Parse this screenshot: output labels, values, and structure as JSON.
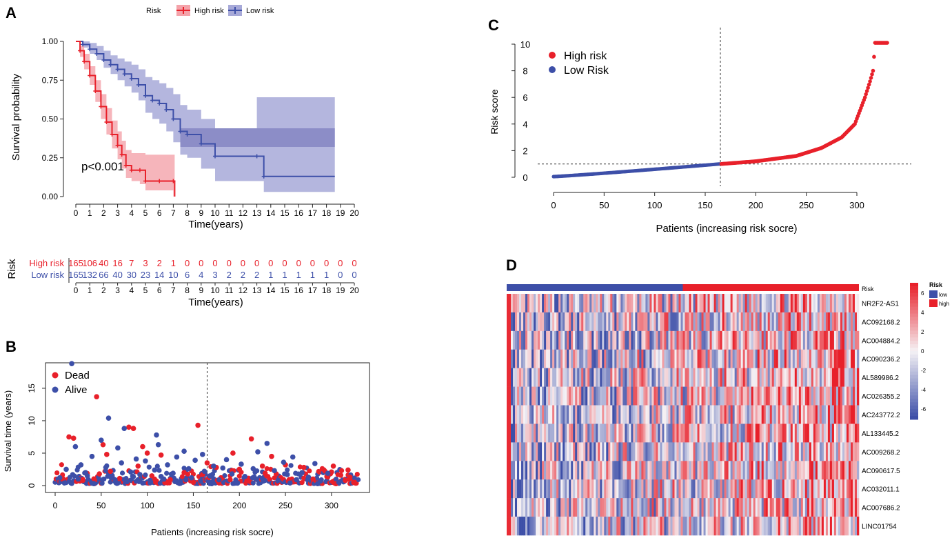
{
  "panels": {
    "a_label": "A",
    "b_label": "B",
    "c_label": "C",
    "d_label": "D"
  },
  "colors": {
    "high": "#e8202a",
    "low": "#3d4fa8",
    "high_band": "#f4a3aa",
    "low_band": "#a7a9d8",
    "overlap_band": "#7b7cbe"
  },
  "chart_data": [
    {
      "id": "A-km",
      "type": "line",
      "title": "",
      "legend_title": "Risk",
      "legend": [
        "High risk",
        "Low risk"
      ],
      "legend_position": "top",
      "xlabel": "Time(years)",
      "ylabel": "Survival probability",
      "xlim": [
        0,
        20
      ],
      "ylim": [
        0,
        1
      ],
      "x_ticks": [
        0,
        1,
        2,
        3,
        4,
        5,
        6,
        7,
        8,
        9,
        10,
        11,
        12,
        13,
        14,
        15,
        16,
        17,
        18,
        19,
        20
      ],
      "y_ticks": [
        "0.00",
        "0.25",
        "0.50",
        "0.75",
        "1.00"
      ],
      "annotation": "p<0.001",
      "series": [
        {
          "name": "High risk",
          "x": [
            0,
            0.3,
            0.6,
            1,
            1.4,
            1.8,
            2.2,
            2.6,
            3,
            3.3,
            3.6,
            4,
            4.6,
            5,
            6,
            7,
            7.1
          ],
          "y": [
            1,
            0.94,
            0.87,
            0.78,
            0.68,
            0.58,
            0.48,
            0.4,
            0.33,
            0.27,
            0.2,
            0.17,
            0.17,
            0.1,
            0.1,
            0.1,
            0
          ],
          "ci_low": [
            1,
            0.9,
            0.82,
            0.72,
            0.61,
            0.5,
            0.4,
            0.31,
            0.24,
            0.18,
            0.12,
            0.1,
            0.08,
            0.04,
            0.04,
            0,
            0
          ],
          "ci_high": [
            1,
            0.97,
            0.92,
            0.84,
            0.75,
            0.66,
            0.57,
            0.49,
            0.42,
            0.36,
            0.3,
            0.28,
            0.28,
            0.27,
            0.27,
            0.27,
            0
          ]
        },
        {
          "name": "Low risk",
          "x": [
            0,
            0.5,
            1,
            1.5,
            2,
            2.5,
            3,
            3.5,
            4,
            4.5,
            5,
            5.5,
            6,
            6.5,
            7,
            7.5,
            8,
            9,
            10,
            13,
            13.5,
            18.6
          ],
          "y": [
            1,
            0.98,
            0.95,
            0.92,
            0.88,
            0.85,
            0.82,
            0.79,
            0.76,
            0.72,
            0.65,
            0.62,
            0.6,
            0.56,
            0.5,
            0.42,
            0.4,
            0.34,
            0.26,
            0.26,
            0.13,
            0.13
          ],
          "ci_low": [
            1,
            0.96,
            0.92,
            0.88,
            0.83,
            0.79,
            0.75,
            0.71,
            0.67,
            0.62,
            0.54,
            0.5,
            0.47,
            0.42,
            0.35,
            0.27,
            0.25,
            0.18,
            0.1,
            0.1,
            0.03,
            0.03
          ],
          "ci_high": [
            1,
            1,
            0.99,
            0.97,
            0.94,
            0.91,
            0.89,
            0.87,
            0.85,
            0.82,
            0.77,
            0.75,
            0.73,
            0.7,
            0.66,
            0.59,
            0.56,
            0.5,
            0.44,
            0.64,
            0.64,
            0.64
          ]
        }
      ]
    },
    {
      "id": "A-risk-table",
      "type": "table",
      "ylabel": "Risk",
      "xlabel": "Time(years)",
      "x_ticks": [
        0,
        1,
        2,
        3,
        4,
        5,
        6,
        7,
        8,
        9,
        10,
        11,
        12,
        13,
        14,
        15,
        16,
        17,
        18,
        19,
        20
      ],
      "rows": [
        {
          "label": "High risk",
          "values": [
            165,
            106,
            40,
            16,
            7,
            3,
            2,
            1,
            0,
            0,
            0,
            0,
            0,
            0,
            0,
            0,
            0,
            0,
            0,
            0,
            0
          ]
        },
        {
          "label": "Low risk",
          "values": [
            165,
            132,
            66,
            40,
            30,
            23,
            14,
            10,
            6,
            4,
            3,
            2,
            2,
            2,
            1,
            1,
            1,
            1,
            1,
            0,
            0
          ]
        }
      ]
    },
    {
      "id": "B-survival-status",
      "type": "scatter",
      "xlabel": "Patients (increasing risk socre)",
      "ylabel": "Survival time (years)",
      "xlim": [
        0,
        330
      ],
      "ylim": [
        0,
        18.5
      ],
      "x_ticks": [
        0,
        50,
        100,
        150,
        200,
        250,
        300
      ],
      "y_ticks": [
        0,
        5,
        10,
        15
      ],
      "cutoff": 165,
      "legend": [
        "Dead",
        "Alive"
      ],
      "legend_position": "top-left",
      "series": [
        {
          "name": "Dead",
          "points": [
            [
              15,
              7.5
            ],
            [
              20,
              7.3
            ],
            [
              45,
              13.7
            ],
            [
              52,
              6.3
            ],
            [
              56,
              4.8
            ],
            [
              80,
              9.0
            ],
            [
              85,
              8.8
            ],
            [
              95,
              6.0
            ],
            [
              100,
              5.0
            ],
            [
              115,
              4.7
            ],
            [
              155,
              9.3
            ],
            [
              165,
              3.5
            ],
            [
              175,
              2.8
            ],
            [
              193,
              5.0
            ],
            [
              213,
              7.2
            ],
            [
              225,
              3.0
            ],
            [
              235,
              4.5
            ],
            [
              270,
              2.8
            ],
            [
              290,
              2.6
            ],
            [
              300,
              2.1
            ],
            [
              310,
              1.6
            ],
            [
              320,
              1.3
            ],
            [
              8,
              1.0
            ],
            [
              30,
              0.8
            ],
            [
              48,
              1.8
            ],
            [
              60,
              2.2
            ],
            [
              70,
              1.1
            ],
            [
              90,
              3.0
            ],
            [
              105,
              1.5
            ],
            [
              125,
              0.9
            ],
            [
              140,
              2.0
            ],
            [
              150,
              0.5
            ],
            [
              180,
              1.2
            ],
            [
              200,
              2.5
            ],
            [
              210,
              0.7
            ],
            [
              240,
              1.8
            ],
            [
              250,
              3.2
            ],
            [
              260,
              0.6
            ],
            [
              280,
              1.0
            ],
            [
              295,
              1.4
            ],
            [
              305,
              0.3
            ],
            [
              315,
              0.8
            ],
            [
              325,
              0.5
            ],
            [
              318,
              2.4
            ],
            [
              302,
              3.0
            ],
            [
              245,
              1.2
            ],
            [
              228,
              1.9
            ],
            [
              190,
              0.9
            ],
            [
              160,
              1.7
            ]
          ]
        },
        {
          "name": "Alive",
          "points": [
            [
              18,
              18.8
            ],
            [
              58,
              10.4
            ],
            [
              75,
              8.8
            ],
            [
              110,
              7.8
            ],
            [
              140,
              5.3
            ],
            [
              160,
              4.8
            ],
            [
              5,
              1.2
            ],
            [
              12,
              2.5
            ],
            [
              22,
              6.0
            ],
            [
              28,
              3.2
            ],
            [
              35,
              1.5
            ],
            [
              40,
              4.5
            ],
            [
              50,
              7.0
            ],
            [
              55,
              2.8
            ],
            [
              62,
              1.3
            ],
            [
              68,
              5.8
            ],
            [
              72,
              3.5
            ],
            [
              78,
              0.6
            ],
            [
              82,
              2.1
            ],
            [
              88,
              4.1
            ],
            [
              92,
              1.7
            ],
            [
              98,
              3.8
            ],
            [
              103,
              0.8
            ],
            [
              108,
              2.4
            ],
            [
              112,
              6.3
            ],
            [
              118,
              1.0
            ],
            [
              122,
              3.2
            ],
            [
              128,
              1.9
            ],
            [
              132,
              4.4
            ],
            [
              136,
              0.5
            ],
            [
              145,
              2.6
            ],
            [
              148,
              1.2
            ],
            [
              152,
              3.9
            ],
            [
              158,
              0.7
            ],
            [
              162,
              2.2
            ],
            [
              168,
              1.5
            ],
            [
              172,
              3.0
            ],
            [
              178,
              0.9
            ],
            [
              182,
              2.7
            ],
            [
              186,
              4.0
            ],
            [
              192,
              1.8
            ],
            [
              196,
              0.6
            ],
            [
              202,
              3.3
            ],
            [
              206,
              1.4
            ],
            [
              215,
              2.6
            ],
            [
              220,
              5.2
            ],
            [
              225,
              1.1
            ],
            [
              230,
              6.5
            ],
            [
              238,
              2.3
            ],
            [
              242,
              0.8
            ],
            [
              248,
              3.6
            ],
            [
              252,
              1.7
            ],
            [
              258,
              4.4
            ],
            [
              262,
              0.9
            ],
            [
              268,
              2.0
            ],
            [
              275,
              1.3
            ],
            [
              282,
              3.4
            ],
            [
              288,
              0.7
            ],
            [
              296,
              1.9
            ],
            [
              308,
              0.5
            ],
            [
              10,
              0.4
            ],
            [
              25,
              1.0
            ],
            [
              33,
              2.0
            ],
            [
              42,
              0.3
            ],
            [
              65,
              0.9
            ],
            [
              95,
              0.4
            ],
            [
              115,
              1.4
            ],
            [
              142,
              0.9
            ],
            [
              170,
              0.3
            ],
            [
              198,
              0.4
            ],
            [
              218,
              1.0
            ],
            [
              255,
              0.4
            ],
            [
              285,
              0.3
            ]
          ]
        }
      ]
    },
    {
      "id": "C-risk-score",
      "type": "scatter",
      "xlabel": "Patients (increasing risk socre)",
      "ylabel": "Risk score",
      "xlim": [
        0,
        330
      ],
      "ylim": [
        0,
        10
      ],
      "x_ticks": [
        0,
        50,
        100,
        150,
        200,
        250,
        300
      ],
      "y_ticks": [
        0,
        2,
        4,
        6,
        8,
        10
      ],
      "cutoff_x": 165,
      "cutoff_y": 1.0,
      "legend": [
        "High risk",
        "Low Risk"
      ],
      "legend_position": "top-left",
      "n_low": 165,
      "n_high": 165,
      "low_range": [
        0.05,
        1.0
      ],
      "high_range": [
        1.0,
        10.1
      ],
      "high_knots": [
        [
          166,
          1.0
        ],
        [
          200,
          1.2
        ],
        [
          240,
          1.6
        ],
        [
          265,
          2.2
        ],
        [
          285,
          3.0
        ],
        [
          298,
          4.0
        ],
        [
          303,
          5.0
        ],
        [
          308,
          6.0
        ],
        [
          313,
          7.2
        ],
        [
          316,
          8.0
        ],
        [
          318,
          10.1
        ],
        [
          330,
          10.1
        ]
      ]
    },
    {
      "id": "D-heatmap",
      "type": "heatmap",
      "legend_title": "Risk",
      "legend": [
        "low",
        "high"
      ],
      "colorbar_ticks": [
        "6",
        "4",
        "2",
        "0",
        "-2",
        "-4",
        "-6"
      ],
      "annotation_label": "Risk",
      "n_columns": 330,
      "n_low": 165,
      "rows": [
        "NR2F2-AS1",
        "AC092168.2",
        "AC004884.2",
        "AC090236.2",
        "AL589986.2",
        "AC026355.2",
        "AC243772.2",
        "AL133445.2",
        "AC009268.2",
        "AC090617.5",
        "AC032011.1",
        "AC007686.2",
        "LINC01754"
      ]
    }
  ]
}
